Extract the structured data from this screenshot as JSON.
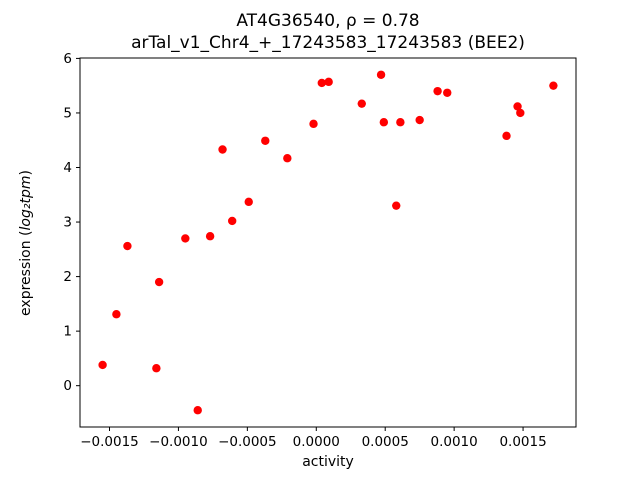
{
  "chart_data": {
    "type": "scatter",
    "title_line1": "AT4G36540, ρ = 0.78",
    "title_line2": "arTal_v1_Chr4_+_17243583_17243583 (BEE2)",
    "xlabel": "activity",
    "ylabel_prefix": "expression (",
    "ylabel_math": "log₂tpm",
    "ylabel_suffix": ")",
    "marker_color": "#ff0000",
    "axis_color": "#000000",
    "xlim": [
      -0.001714,
      0.001884
    ],
    "ylim": [
      -0.7575,
      6.0075
    ],
    "xticks": [
      -0.0015,
      -0.001,
      -0.0005,
      0.0,
      0.0005,
      0.001,
      0.0015
    ],
    "xtick_labels": [
      "−0.0015",
      "−0.0010",
      "−0.0005",
      "0.0000",
      "0.0005",
      "0.0010",
      "0.0015"
    ],
    "yticks": [
      0,
      1,
      2,
      3,
      4,
      5,
      6
    ],
    "ytick_labels": [
      "0",
      "1",
      "2",
      "3",
      "4",
      "5",
      "6"
    ],
    "legend": "none",
    "grid": false,
    "points": [
      {
        "x": -0.00155,
        "y": 0.38
      },
      {
        "x": -0.00145,
        "y": 1.31
      },
      {
        "x": -0.00137,
        "y": 2.56
      },
      {
        "x": -0.00116,
        "y": 0.32
      },
      {
        "x": -0.00114,
        "y": 1.9
      },
      {
        "x": -0.00095,
        "y": 2.7
      },
      {
        "x": -0.00086,
        "y": -0.45
      },
      {
        "x": -0.00077,
        "y": 2.74
      },
      {
        "x": -0.00068,
        "y": 4.33
      },
      {
        "x": -0.00061,
        "y": 3.02
      },
      {
        "x": -0.00049,
        "y": 3.37
      },
      {
        "x": -0.00037,
        "y": 4.49
      },
      {
        "x": -0.00021,
        "y": 4.17
      },
      {
        "x": -2e-05,
        "y": 4.8
      },
      {
        "x": 4e-05,
        "y": 5.55
      },
      {
        "x": 9e-05,
        "y": 5.57
      },
      {
        "x": 0.00033,
        "y": 5.17
      },
      {
        "x": 0.00047,
        "y": 5.7
      },
      {
        "x": 0.00049,
        "y": 4.83
      },
      {
        "x": 0.00058,
        "y": 3.3
      },
      {
        "x": 0.00061,
        "y": 4.83
      },
      {
        "x": 0.00075,
        "y": 4.87
      },
      {
        "x": 0.00088,
        "y": 5.4
      },
      {
        "x": 0.00095,
        "y": 5.37
      },
      {
        "x": 0.00138,
        "y": 4.58
      },
      {
        "x": 0.00146,
        "y": 5.12
      },
      {
        "x": 0.00148,
        "y": 5.0
      },
      {
        "x": 0.00172,
        "y": 5.5
      }
    ]
  }
}
